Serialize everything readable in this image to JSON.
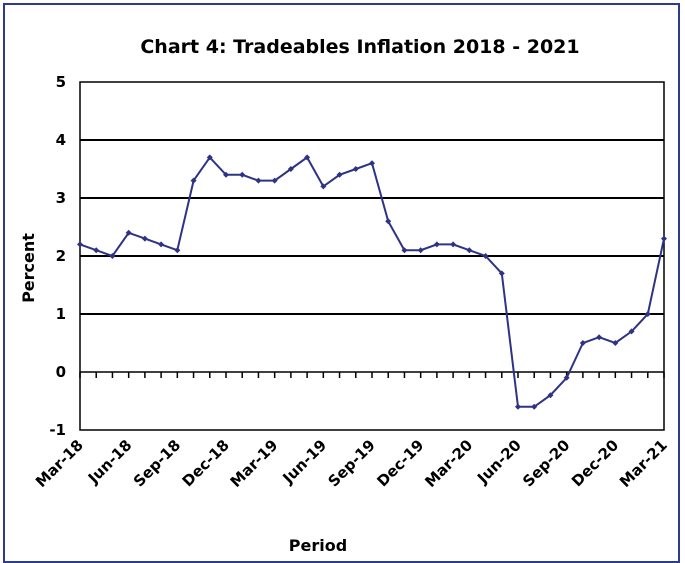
{
  "chart_data": {
    "type": "line",
    "title": "Chart 4: Tradeables Inflation 2018 - 2021",
    "xlabel": "Period",
    "ylabel": "Percent",
    "ylim": [
      -1,
      5
    ],
    "yticks": [
      "-1",
      "0",
      "1",
      "2",
      "3",
      "4",
      "5"
    ],
    "x_tick_labels": [
      "Mar-18",
      "Jun-18",
      "Sep-18",
      "Dec-18",
      "Mar-19",
      "Jun-19",
      "Sep-19",
      "Dec-19",
      "Mar-20",
      "Jun-20",
      "Sep-20",
      "Dec-20",
      "Mar-21"
    ],
    "grid": "horizontal",
    "line_color": "#2e3383",
    "x": [
      "Mar-18",
      "Apr-18",
      "May-18",
      "Jun-18",
      "Jul-18",
      "Aug-18",
      "Sep-18",
      "Oct-18",
      "Nov-18",
      "Dec-18",
      "Jan-19",
      "Feb-19",
      "Mar-19",
      "Apr-19",
      "May-19",
      "Jun-19",
      "Jul-19",
      "Aug-19",
      "Sep-19",
      "Oct-19",
      "Nov-19",
      "Dec-19",
      "Jan-20",
      "Feb-20",
      "Mar-20",
      "Apr-20",
      "May-20",
      "Jun-20",
      "Jul-20",
      "Aug-20",
      "Sep-20",
      "Oct-20",
      "Nov-20",
      "Dec-20",
      "Jan-21",
      "Feb-21",
      "Mar-21"
    ],
    "series": [
      {
        "values": [
          2.2,
          2.1,
          2.0,
          2.4,
          2.3,
          2.2,
          2.1,
          3.3,
          3.7,
          3.4,
          3.4,
          3.3,
          3.3,
          3.5,
          3.7,
          3.2,
          3.4,
          3.5,
          3.6,
          2.6,
          2.1,
          2.1,
          2.2,
          2.2,
          2.1,
          2.0,
          1.7,
          -0.6,
          -0.6,
          -0.4,
          -0.1,
          0.5,
          0.6,
          0.5,
          0.7,
          1.0,
          2.3
        ]
      }
    ]
  }
}
